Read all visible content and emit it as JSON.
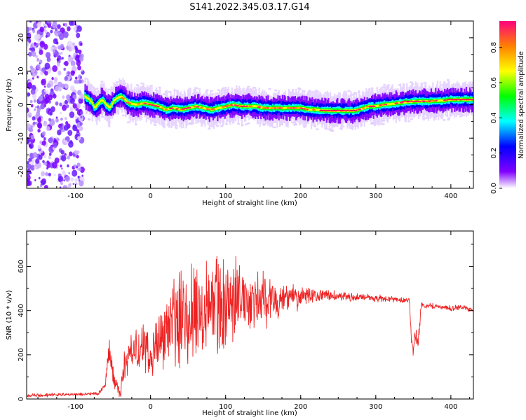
{
  "figure": {
    "title": "S141.2022.345.03.17.G14"
  },
  "chart_data": [
    {
      "type": "heatmap",
      "xlabel": "Height of straight line (km)",
      "ylabel": "Frequency (Hz)",
      "xlim": [
        -165,
        430
      ],
      "ylim": [
        -25,
        25
      ],
      "xticks": [
        -100,
        0,
        100,
        200,
        300,
        400
      ],
      "xtick_labels": [
        "-100",
        "0",
        "100",
        "200",
        "300",
        "400"
      ],
      "yticks": [
        -20,
        -10,
        0,
        10,
        20
      ],
      "ytick_labels": [
        "-20",
        "-10",
        "0",
        "10",
        "20"
      ],
      "noise_region_x": [
        -165,
        -90
      ],
      "ridge": {
        "x": [
          -88,
          -80,
          -75,
          -70,
          -65,
          -60,
          -55,
          -50,
          -45,
          -40,
          -35,
          -30,
          -20,
          -10,
          0,
          10,
          20,
          30,
          40,
          50,
          60,
          70,
          80,
          90,
          100,
          110,
          120,
          130,
          140,
          150,
          160,
          170,
          180,
          190,
          200,
          210,
          220,
          230,
          240,
          250,
          260,
          270,
          280,
          290,
          300,
          310,
          320,
          330,
          340,
          350,
          360,
          370,
          380,
          390,
          400,
          410,
          420,
          430
        ],
        "freq": [
          2.5,
          1,
          -1,
          0.5,
          1.5,
          0,
          -1,
          1,
          2,
          2.5,
          1.5,
          0.5,
          0,
          0.5,
          0,
          -0.5,
          -1.5,
          -1,
          -1.5,
          -1,
          -0.5,
          -1,
          -1.5,
          -1,
          -0.5,
          0,
          -0.5,
          -0.5,
          -0.5,
          -1,
          -1,
          -1,
          -1,
          -1,
          -1,
          -1.5,
          -1.5,
          -1.8,
          -1.8,
          -1.8,
          -1.8,
          -1.8,
          -1.3,
          -0.5,
          -0.5,
          0,
          0.2,
          0.5,
          0.8,
          1,
          1,
          1,
          1.2,
          1.2,
          1.5,
          1.5,
          1.5,
          1.5
        ]
      },
      "colorbar": {
        "label": "Normalized spectral amplitude",
        "range": [
          0,
          0.95
        ],
        "ticks": [
          0.0,
          0.2,
          0.4,
          0.6,
          0.8
        ],
        "tick_labels": [
          "0.0",
          "0.2",
          "0.4",
          "0.6",
          "0.8"
        ],
        "colors": [
          "#ffffff",
          "#8000ff",
          "#0000ff",
          "#00ffff",
          "#00ff00",
          "#ffff00",
          "#ff8000",
          "#ff0080"
        ]
      },
      "grid": false
    },
    {
      "type": "line",
      "xlabel": "Height of straight line (km)",
      "ylabel": "SNR (10 * v/v)",
      "xlim": [
        -165,
        430
      ],
      "ylim": [
        0,
        760
      ],
      "xticks": [
        -100,
        0,
        100,
        200,
        300,
        400
      ],
      "xtick_labels": [
        "-100",
        "0",
        "100",
        "200",
        "300",
        "400"
      ],
      "yticks": [
        0,
        200,
        400,
        600
      ],
      "ytick_labels": [
        "0",
        "200",
        "400",
        "600"
      ],
      "series": [
        {
          "color": "#ee2222",
          "x": [
            -165,
            -140,
            -110,
            -90,
            -70,
            -60,
            -58,
            -55,
            -52,
            -50,
            -45,
            -40,
            -38,
            -35,
            -30,
            -25,
            -20,
            -15,
            -10,
            -5,
            0,
            5,
            10,
            15,
            20,
            25,
            30,
            35,
            40,
            45,
            50,
            55,
            60,
            65,
            70,
            75,
            80,
            85,
            90,
            95,
            100,
            105,
            110,
            115,
            120,
            125,
            130,
            135,
            140,
            145,
            150,
            155,
            160,
            165,
            170,
            175,
            180,
            185,
            190,
            195,
            200,
            210,
            220,
            230,
            240,
            250,
            260,
            270,
            280,
            290,
            300,
            310,
            320,
            330,
            340,
            345,
            347,
            350,
            352,
            355,
            357,
            360,
            370,
            380,
            390,
            400,
            410,
            420,
            430
          ],
          "y": [
            15,
            18,
            20,
            22,
            25,
            60,
            180,
            220,
            140,
            110,
            60,
            20,
            80,
            140,
            190,
            210,
            250,
            180,
            240,
            200,
            170,
            230,
            270,
            300,
            290,
            320,
            360,
            340,
            380,
            420,
            360,
            400,
            450,
            380,
            430,
            470,
            400,
            460,
            420,
            430,
            410,
            480,
            440,
            470,
            430,
            460,
            450,
            440,
            480,
            430,
            460,
            420,
            470,
            450,
            440,
            430,
            460,
            450,
            470,
            440,
            460,
            470,
            465,
            470,
            468,
            465,
            462,
            460,
            462,
            458,
            455,
            455,
            452,
            450,
            448,
            445,
            280,
            210,
            280,
            270,
            260,
            420,
            425,
            420,
            415,
            410,
            415,
            410,
            400
          ],
          "spread": [
            10,
            10,
            8,
            8,
            10,
            20,
            60,
            80,
            70,
            60,
            40,
            20,
            60,
            90,
            100,
            110,
            120,
            120,
            130,
            140,
            140,
            160,
            170,
            180,
            190,
            200,
            220,
            230,
            250,
            260,
            270,
            280,
            290,
            290,
            290,
            280,
            280,
            270,
            260,
            250,
            240,
            230,
            220,
            210,
            200,
            190,
            180,
            170,
            160,
            150,
            140,
            130,
            120,
            110,
            100,
            90,
            80,
            70,
            60,
            55,
            50,
            40,
            35,
            30,
            28,
            26,
            24,
            22,
            20,
            20,
            18,
            18,
            16,
            16,
            15,
            15,
            40,
            30,
            40,
            40,
            40,
            20,
            15,
            15,
            14,
            14,
            14,
            14,
            14
          ]
        }
      ],
      "grid": false
    }
  ]
}
